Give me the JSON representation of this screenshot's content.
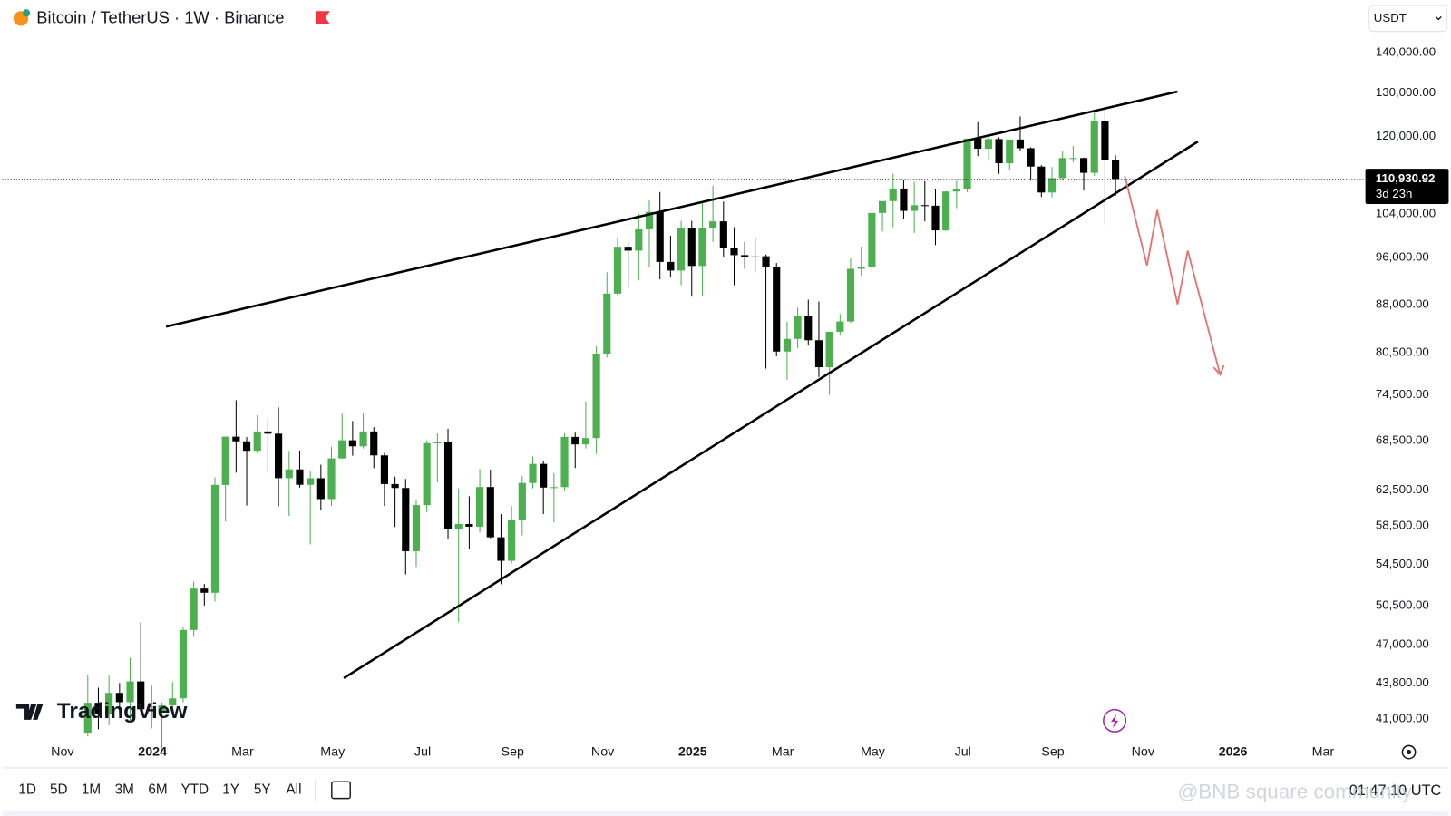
{
  "chart_data": {
    "type": "candlestick",
    "title": "Bitcoin / TetherUS · 1W · Binance",
    "currency": "USDT",
    "up_color": "#4caf50",
    "down_color": "#000000",
    "log_scale": true,
    "ylim": [
      39760,
      146600
    ],
    "yticks": [
      {
        "value": 41000,
        "label": "41,000.00"
      },
      {
        "value": 43800,
        "label": "43,800.00"
      },
      {
        "value": 47000,
        "label": "47,000.00"
      },
      {
        "value": 50500,
        "label": "50,500.00"
      },
      {
        "value": 54500,
        "label": "54,500.00"
      },
      {
        "value": 58500,
        "label": "58,500.00"
      },
      {
        "value": 62500,
        "label": "62,500.00"
      },
      {
        "value": 68500,
        "label": "68,500.00"
      },
      {
        "value": 74500,
        "label": "74,500.00"
      },
      {
        "value": 80500,
        "label": "80,500.00"
      },
      {
        "value": 88000,
        "label": "88,000.00"
      },
      {
        "value": 96000,
        "label": "96,000.00"
      },
      {
        "value": 104000,
        "label": "104,000.00"
      },
      {
        "value": 120000,
        "label": "120,000.00"
      },
      {
        "value": 130000,
        "label": "130,000.00"
      },
      {
        "value": 140000,
        "label": "140,000.00"
      }
    ],
    "x_labels": [
      "Nov",
      "2024",
      "Mar",
      "May",
      "Jul",
      "Sep",
      "Nov",
      "2025",
      "Mar",
      "May",
      "Jul",
      "Sep",
      "Nov",
      "2026",
      "Mar"
    ],
    "open": [
      39970,
      42230,
      41380,
      43010,
      42280,
      43930,
      41730,
      41580,
      42030,
      42580,
      48300,
      52130,
      51730,
      63110,
      68980,
      68390,
      67210,
      69650,
      69360,
      63900,
      64940,
      63120,
      63890,
      61480,
      66270,
      68520,
      67760,
      69650,
      66640,
      63210,
      62750,
      55850,
      60800,
      68160,
      68250,
      58160,
      58720,
      58430,
      62860,
      57300,
      54870,
      59120,
      63330,
      65600,
      62800,
      62850,
      68950,
      68000,
      68800,
      80400,
      89800,
      97900,
      97200,
      101100,
      104400,
      95200,
      93700,
      101300,
      94500,
      101300,
      102600,
      97700,
      96400,
      96100,
      96200,
      94300,
      80700,
      82600,
      86100,
      82400,
      78400,
      83700,
      85300,
      94000,
      94300,
      104200,
      106500,
      109000,
      104600,
      105700,
      105600,
      100900,
      108400,
      108800,
      119500,
      117300,
      119400,
      114200,
      119300,
      117400,
      113500,
      108200,
      111100,
      115300,
      115300,
      112200,
      123500,
      114900
    ],
    "high": [
      44490,
      43430,
      44400,
      43800,
      45880,
      48970,
      43580,
      42250,
      43880,
      48590,
      52820,
      52570,
      64000,
      69000,
      73780,
      68920,
      71770,
      71350,
      72800,
      67200,
      67240,
      64700,
      65500,
      67700,
      71980,
      71000,
      71990,
      70200,
      66950,
      64070,
      63800,
      61400,
      68500,
      69400,
      70000,
      62700,
      61800,
      65000,
      64900,
      59800,
      60700,
      64130,
      66500,
      66000,
      64500,
      69400,
      69500,
      73600,
      81500,
      93400,
      99600,
      98800,
      104000,
      106600,
      108300,
      99900,
      102700,
      102700,
      106400,
      109600,
      106400,
      101500,
      98800,
      99500,
      96500,
      95000,
      85300,
      87500,
      88800,
      88500,
      83500,
      86500,
      95800,
      97900,
      104300,
      105800,
      112000,
      110700,
      110400,
      110500,
      108900,
      108500,
      110600,
      119500,
      123200,
      120000,
      119800,
      119300,
      124500,
      117600,
      113800,
      113400,
      116700,
      117900,
      115400,
      125700,
      126200,
      115900
    ],
    "low": [
      39700,
      40220,
      40530,
      41450,
      40750,
      41500,
      40280,
      38550,
      41860,
      42260,
      47700,
      50520,
      50900,
      59000,
      64550,
      60760,
      66930,
      64500,
      60660,
      59600,
      62800,
      56550,
      60200,
      60700,
      66200,
      66600,
      67500,
      65080,
      60700,
      58400,
      53500,
      54260,
      60000,
      63400,
      57100,
      49000,
      56100,
      57800,
      57200,
      52550,
      54580,
      57500,
      62700,
      59800,
      58900,
      62450,
      65100,
      67500,
      66800,
      79800,
      89400,
      90800,
      92000,
      94200,
      92200,
      92500,
      91200,
      89300,
      89300,
      98800,
      96100,
      91200,
      94000,
      93400,
      78200,
      80000,
      76600,
      81200,
      81600,
      77000,
      74500,
      83100,
      85100,
      92800,
      93400,
      100700,
      101500,
      103100,
      100400,
      102600,
      98200,
      100800,
      105100,
      108300,
      115700,
      114700,
      112000,
      112700,
      116800,
      110600,
      107300,
      107200,
      110600,
      114400,
      108600,
      111600,
      102000,
      107500
    ],
    "close": [
      42230,
      41380,
      43010,
      42280,
      43930,
      41730,
      41580,
      42030,
      42580,
      48300,
      52130,
      51730,
      63110,
      68980,
      68390,
      67210,
      69650,
      69360,
      63900,
      64940,
      63120,
      63890,
      61480,
      66270,
      68520,
      67760,
      69650,
      66640,
      63210,
      62750,
      55850,
      60800,
      68160,
      68250,
      58160,
      58720,
      58430,
      62860,
      57300,
      54870,
      59120,
      63330,
      65600,
      62800,
      62850,
      68950,
      68000,
      68800,
      80400,
      89800,
      97900,
      97200,
      101100,
      104400,
      95200,
      93700,
      101300,
      94500,
      101300,
      102600,
      97700,
      96400,
      96100,
      96200,
      94300,
      80700,
      82600,
      86100,
      82400,
      78400,
      83700,
      85300,
      94000,
      94300,
      104200,
      106500,
      109000,
      104600,
      105700,
      105600,
      100900,
      108400,
      108800,
      119500,
      117300,
      119400,
      114200,
      119300,
      117400,
      113500,
      108200,
      111100,
      115300,
      115300,
      112200,
      123500,
      114900,
      110930.92
    ],
    "price_label": "110,930.92",
    "countdown": "3d 23h"
  },
  "logo": "TradingView",
  "toolbar": [
    "1D",
    "5D",
    "1M",
    "3M",
    "6M",
    "YTD",
    "1Y",
    "5Y",
    "All"
  ],
  "clock": "01:47:10 UTC",
  "watermark": "@BNB square community"
}
